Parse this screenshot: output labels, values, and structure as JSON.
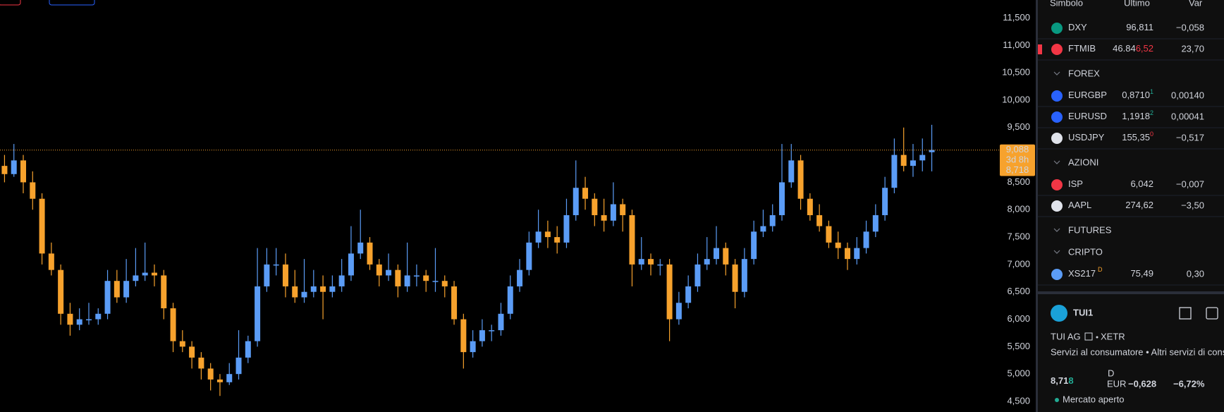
{
  "chart_data": {
    "type": "candlestick",
    "ylim": [
      4.5,
      11.5
    ],
    "yticks": [
      {
        "value": 11.5,
        "label": "11,500"
      },
      {
        "value": 11,
        "label": "11,000"
      },
      {
        "value": 10.5,
        "label": "10,500"
      },
      {
        "value": 10,
        "label": "10,000"
      },
      {
        "value": 9.5,
        "label": "9,500"
      },
      {
        "value": 9,
        "label": "9,000"
      },
      {
        "value": 8.5,
        "label": "8,500"
      },
      {
        "value": 8,
        "label": "8,000"
      },
      {
        "value": 7.5,
        "label": "7,500"
      },
      {
        "value": 7,
        "label": "7,000"
      },
      {
        "value": 6.5,
        "label": "6,500"
      },
      {
        "value": 6,
        "label": "6,000"
      },
      {
        "value": 5.5,
        "label": "5,500"
      },
      {
        "value": 5,
        "label": "5,000"
      },
      {
        "value": 4.5,
        "label": "4,500"
      }
    ],
    "up_color": "#5b9cf6",
    "down_color": "#f7a22d",
    "candles": [
      [
        8.8,
        9.0,
        8.5,
        8.65
      ],
      [
        8.65,
        9.2,
        8.6,
        8.9
      ],
      [
        8.9,
        9.0,
        8.3,
        8.5
      ],
      [
        8.5,
        8.7,
        8.0,
        8.2
      ],
      [
        8.2,
        8.3,
        7.0,
        7.2
      ],
      [
        7.2,
        7.4,
        6.8,
        6.9
      ],
      [
        6.9,
        7.0,
        5.9,
        6.1
      ],
      [
        6.1,
        6.3,
        5.7,
        5.9
      ],
      [
        5.9,
        6.2,
        5.8,
        6.0
      ],
      [
        6.0,
        6.3,
        5.9,
        6.0
      ],
      [
        6.0,
        6.2,
        5.9,
        6.1
      ],
      [
        6.1,
        6.9,
        6.0,
        6.7
      ],
      [
        6.7,
        6.9,
        6.3,
        6.4
      ],
      [
        6.4,
        7.1,
        6.3,
        6.7
      ],
      [
        6.7,
        7.3,
        6.6,
        6.8
      ],
      [
        6.8,
        7.4,
        6.7,
        6.85
      ],
      [
        6.85,
        7.0,
        6.6,
        6.8
      ],
      [
        6.8,
        6.9,
        6.0,
        6.2
      ],
      [
        6.2,
        6.3,
        5.4,
        5.6
      ],
      [
        5.6,
        5.8,
        5.4,
        5.5
      ],
      [
        5.5,
        5.6,
        5.1,
        5.3
      ],
      [
        5.3,
        5.4,
        4.9,
        5.1
      ],
      [
        5.1,
        5.2,
        4.7,
        4.9
      ],
      [
        4.9,
        5.0,
        4.6,
        4.85
      ],
      [
        4.85,
        5.2,
        4.8,
        5.0
      ],
      [
        5.0,
        5.8,
        4.9,
        5.3
      ],
      [
        5.3,
        5.7,
        5.2,
        5.6
      ],
      [
        5.6,
        7.3,
        5.5,
        6.6
      ],
      [
        6.6,
        7.3,
        6.5,
        7.0
      ],
      [
        7.0,
        7.3,
        6.8,
        7.0
      ],
      [
        7.0,
        7.2,
        6.4,
        6.6
      ],
      [
        6.6,
        6.9,
        6.3,
        6.4
      ],
      [
        6.4,
        7.1,
        6.3,
        6.5
      ],
      [
        6.5,
        6.9,
        6.4,
        6.6
      ],
      [
        6.6,
        6.8,
        6.0,
        6.5
      ],
      [
        6.5,
        6.8,
        6.4,
        6.6
      ],
      [
        6.6,
        7.1,
        6.5,
        6.8
      ],
      [
        6.8,
        7.7,
        6.7,
        7.2
      ],
      [
        7.2,
        8.0,
        7.1,
        7.4
      ],
      [
        7.4,
        7.5,
        6.9,
        7.0
      ],
      [
        7.0,
        7.1,
        6.6,
        6.8
      ],
      [
        6.8,
        7.2,
        6.7,
        6.9
      ],
      [
        6.9,
        7.0,
        6.4,
        6.6
      ],
      [
        6.6,
        7.4,
        6.5,
        6.8
      ],
      [
        6.8,
        7.0,
        6.6,
        6.8
      ],
      [
        6.8,
        6.9,
        6.5,
        6.7
      ],
      [
        6.7,
        7.3,
        6.5,
        6.7
      ],
      [
        6.7,
        6.8,
        6.4,
        6.6
      ],
      [
        6.6,
        6.7,
        5.9,
        6.0
      ],
      [
        6.0,
        6.1,
        5.1,
        5.4
      ],
      [
        5.4,
        5.8,
        5.3,
        5.6
      ],
      [
        5.6,
        6.0,
        5.5,
        5.8
      ],
      [
        5.8,
        5.9,
        5.6,
        5.8
      ],
      [
        5.8,
        6.3,
        5.7,
        6.1
      ],
      [
        6.1,
        6.8,
        6.0,
        6.6
      ],
      [
        6.6,
        7.1,
        6.5,
        6.9
      ],
      [
        6.9,
        7.6,
        6.8,
        7.4
      ],
      [
        7.4,
        8.0,
        7.3,
        7.6
      ],
      [
        7.6,
        7.8,
        7.3,
        7.5
      ],
      [
        7.5,
        7.7,
        7.2,
        7.4
      ],
      [
        7.4,
        8.2,
        7.3,
        7.9
      ],
      [
        7.9,
        8.9,
        7.8,
        8.4
      ],
      [
        8.4,
        8.6,
        8.0,
        8.2
      ],
      [
        8.2,
        8.3,
        7.7,
        7.9
      ],
      [
        7.9,
        8.2,
        7.6,
        7.8
      ],
      [
        7.8,
        8.5,
        7.7,
        8.1
      ],
      [
        8.1,
        8.2,
        7.6,
        7.9
      ],
      [
        7.9,
        8.0,
        6.6,
        7.0
      ],
      [
        7.0,
        7.5,
        6.9,
        7.1
      ],
      [
        7.1,
        7.2,
        6.8,
        7.0
      ],
      [
        7.0,
        7.1,
        6.8,
        7.0
      ],
      [
        7.0,
        7.1,
        5.6,
        6.0
      ],
      [
        6.0,
        6.5,
        5.9,
        6.3
      ],
      [
        6.3,
        6.8,
        6.2,
        6.6
      ],
      [
        6.6,
        7.2,
        6.5,
        7.0
      ],
      [
        7.0,
        7.5,
        6.9,
        7.1
      ],
      [
        7.1,
        7.7,
        7.0,
        7.3
      ],
      [
        7.3,
        7.4,
        6.8,
        7.0
      ],
      [
        7.0,
        7.1,
        6.2,
        6.5
      ],
      [
        6.5,
        7.3,
        6.4,
        7.1
      ],
      [
        7.1,
        7.8,
        7.0,
        7.6
      ],
      [
        7.6,
        8.0,
        7.5,
        7.7
      ],
      [
        7.7,
        8.1,
        7.6,
        7.9
      ],
      [
        7.9,
        9.2,
        7.8,
        8.5
      ],
      [
        8.5,
        9.2,
        8.4,
        8.9
      ],
      [
        8.9,
        9.0,
        8.0,
        8.2
      ],
      [
        8.2,
        8.3,
        7.8,
        7.9
      ],
      [
        7.9,
        8.1,
        7.6,
        7.7
      ],
      [
        7.7,
        7.8,
        7.3,
        7.4
      ],
      [
        7.4,
        7.6,
        7.1,
        7.3
      ],
      [
        7.3,
        7.4,
        6.9,
        7.1
      ],
      [
        7.1,
        7.5,
        7.0,
        7.3
      ],
      [
        7.3,
        7.8,
        7.2,
        7.6
      ],
      [
        7.6,
        8.1,
        7.5,
        7.9
      ],
      [
        7.9,
        8.6,
        7.8,
        8.4
      ],
      [
        8.4,
        9.3,
        8.3,
        9.0
      ],
      [
        9.0,
        9.5,
        8.7,
        8.8
      ],
      [
        8.8,
        9.2,
        8.6,
        8.9
      ],
      [
        8.9,
        9.3,
        8.7,
        9.0
      ],
      [
        9.05,
        9.55,
        8.7,
        9.09
      ]
    ],
    "price_line": {
      "value": 9.088,
      "label": "9,088"
    },
    "countdown": "3d 8h",
    "last_price": {
      "value": 8.718,
      "label": "8,718"
    }
  },
  "watchlist": {
    "columns": [
      "Simbolo",
      "Ultimo",
      "Var"
    ],
    "items": [
      {
        "symbol": "DXY",
        "last": "96,811",
        "change": "−0,058",
        "direction": "down",
        "last_color": "down"
      },
      {
        "symbol": "FTMIB",
        "last": "46.84",
        "last_tail": "6,52",
        "change": "23,70",
        "direction": "up"
      },
      {
        "section": "FOREX"
      },
      {
        "symbol": "EURGBP",
        "last": "0,8710",
        "last_sup": "1",
        "change": "0,00140",
        "direction": "up"
      },
      {
        "symbol": "EURUSD",
        "last": "1,1918",
        "last_sup": "2",
        "change": "0,00041",
        "direction": "up"
      },
      {
        "symbol": "USDJPY",
        "last": "155,35",
        "last_sup": "0",
        "change": "−0,517",
        "direction": "down"
      },
      {
        "section": "AZIONI"
      },
      {
        "symbol": "ISP",
        "last": "6,042",
        "change": "−0,007",
        "direction": "down"
      },
      {
        "symbol": "AAPL",
        "last": "274,62",
        "change": "−3,50",
        "direction": "down"
      },
      {
        "section": "FUTURES"
      },
      {
        "section": "CRIPTO"
      },
      {
        "symbol": "XS217",
        "badge": "D",
        "last": "75,49",
        "change": "0,30",
        "direction": "up"
      }
    ]
  },
  "detail": {
    "symbol": "TUI1",
    "name": "TUI AG",
    "exchange": "XETR",
    "sector": "Servizi al consumatore • Altri servizi di consu",
    "price": "8,71",
    "price_tail": "8",
    "badge": "D",
    "currency": "EUR",
    "change": "−0,628",
    "change_pct": "−6,72%",
    "status": "Mercato aperto"
  }
}
